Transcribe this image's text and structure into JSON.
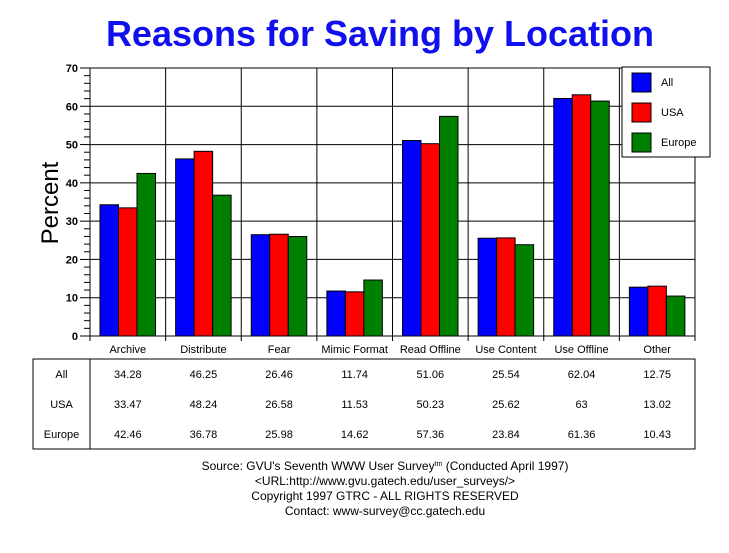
{
  "chart_data": {
    "type": "bar",
    "title": "Reasons for Saving by Location",
    "xlabel": "",
    "ylabel": "Percent",
    "ylim": [
      0,
      70
    ],
    "yticks": [
      0,
      10,
      20,
      30,
      40,
      50,
      60,
      70
    ],
    "grid": true,
    "legend_placement": "top-right",
    "categories": [
      "Archive",
      "Distribute",
      "Fear",
      "Mimic Format",
      "Read Offline",
      "Use Content",
      "Use Offline",
      "Other"
    ],
    "series": [
      {
        "name": "All",
        "color": "#0000ff",
        "values": [
          34.28,
          46.25,
          26.46,
          11.74,
          51.06,
          25.54,
          62.04,
          12.75
        ]
      },
      {
        "name": "USA",
        "color": "#ff0000",
        "values": [
          33.47,
          48.24,
          26.58,
          11.53,
          50.23,
          25.62,
          63,
          13.02
        ]
      },
      {
        "name": "Europe",
        "color": "#008000",
        "values": [
          42.46,
          36.78,
          25.98,
          14.62,
          57.36,
          23.84,
          61.36,
          10.43
        ]
      }
    ],
    "table_values": [
      [
        "34.28",
        "46.25",
        "26.46",
        "11.74",
        "51.06",
        "25.54",
        "62.04",
        "12.75"
      ],
      [
        "33.47",
        "48.24",
        "26.58",
        "11.53",
        "50.23",
        "25.62",
        "63",
        "13.02"
      ],
      [
        "42.46",
        "36.78",
        "25.98",
        "14.62",
        "57.36",
        "23.84",
        "61.36",
        "10.43"
      ]
    ]
  },
  "footer": {
    "source": "Source: GVU's Seventh WWW User Survey",
    "tm": "tm",
    "conducted": " (Conducted April 1997)",
    "url": "<URL:http://www.gvu.gatech.edu/user_surveys/>",
    "copyright": "Copyright 1997 GTRC - ALL RIGHTS RESERVED",
    "contact": "Contact: www-survey@cc.gatech.edu"
  }
}
